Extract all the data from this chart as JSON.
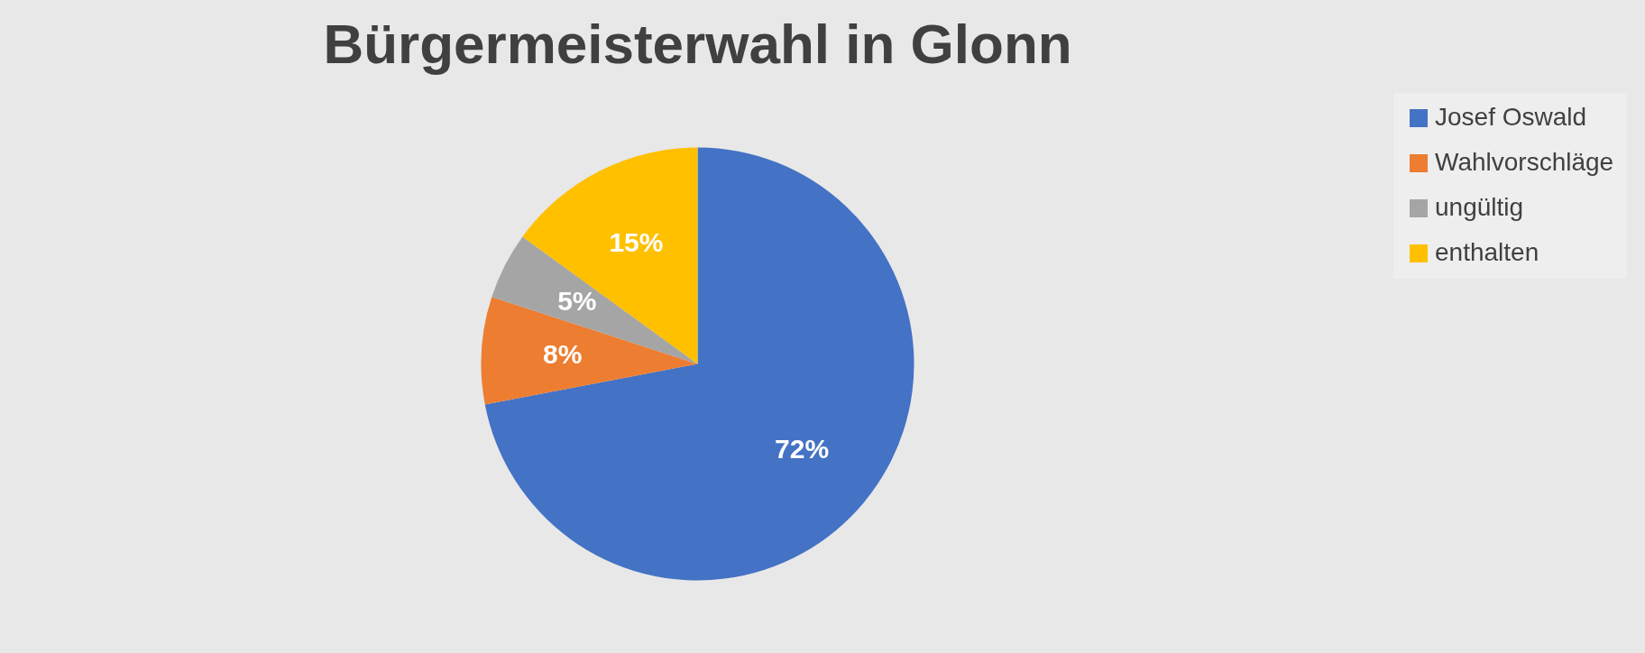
{
  "chart_data": {
    "type": "pie",
    "title": "Bürgermeisterwahl in Glonn",
    "categories": [
      "Josef Oswald",
      "Wahlvorschläge",
      "ungültig",
      "enthalten"
    ],
    "values": [
      72,
      8,
      5,
      15
    ],
    "colors": [
      "#4472c4",
      "#ed7d31",
      "#a5a5a5",
      "#ffc000"
    ],
    "value_labels": [
      "72%",
      "8%",
      "5%",
      "15%"
    ],
    "legend": "right"
  }
}
